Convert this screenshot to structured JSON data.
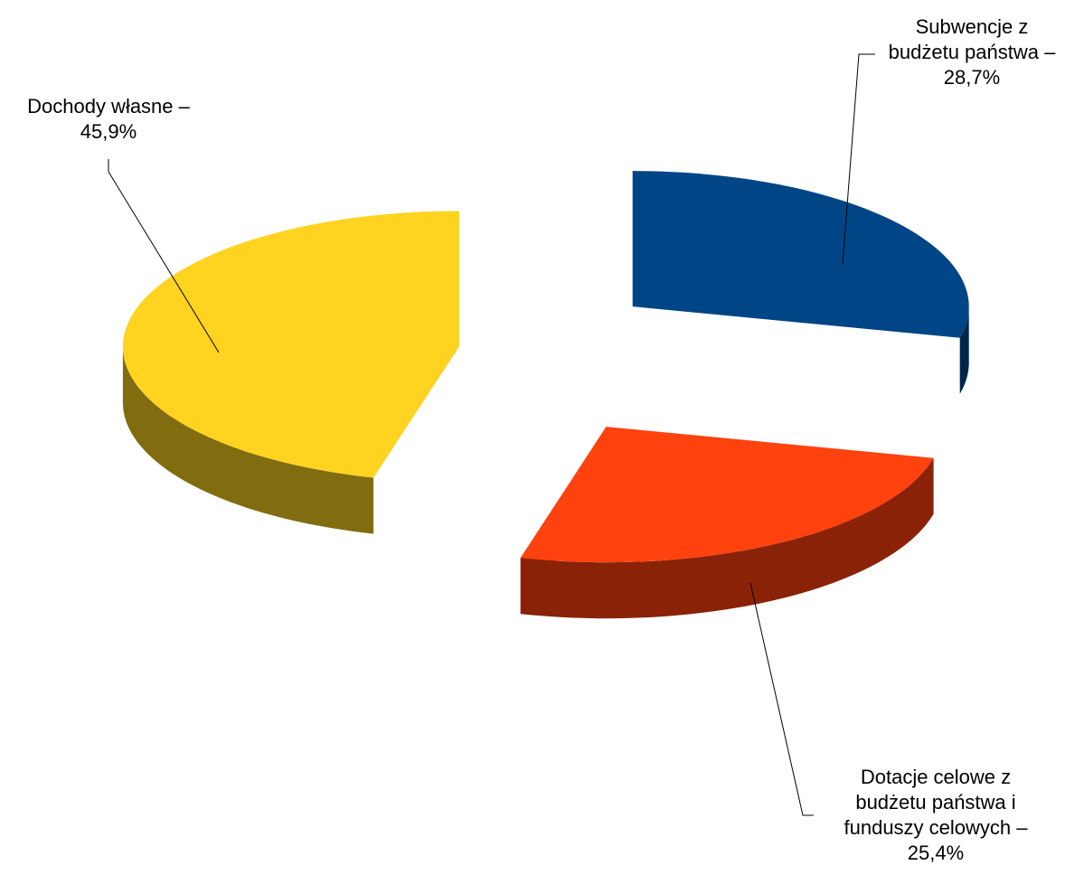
{
  "chart_data": {
    "type": "pie",
    "title": "",
    "slices": [
      {
        "lines": [
          "Subwencje z",
          "budżetu państwa –",
          "28,7%"
        ],
        "value": 28.7,
        "color": "#004586",
        "side_color": "#00264a"
      },
      {
        "lines": [
          "Dotacje celowe z",
          "budżetu państwa i",
          "funduszy celowych –",
          "25,4%"
        ],
        "value": 25.4,
        "color": "#ff420e",
        "side_color": "#8a2208"
      },
      {
        "lines": [
          "Dochody własne –",
          "45,9%"
        ],
        "value": 45.9,
        "color": "#ffd320",
        "side_color": "#816c10"
      }
    ],
    "exploded": true,
    "three_d": true,
    "legend": "none"
  }
}
